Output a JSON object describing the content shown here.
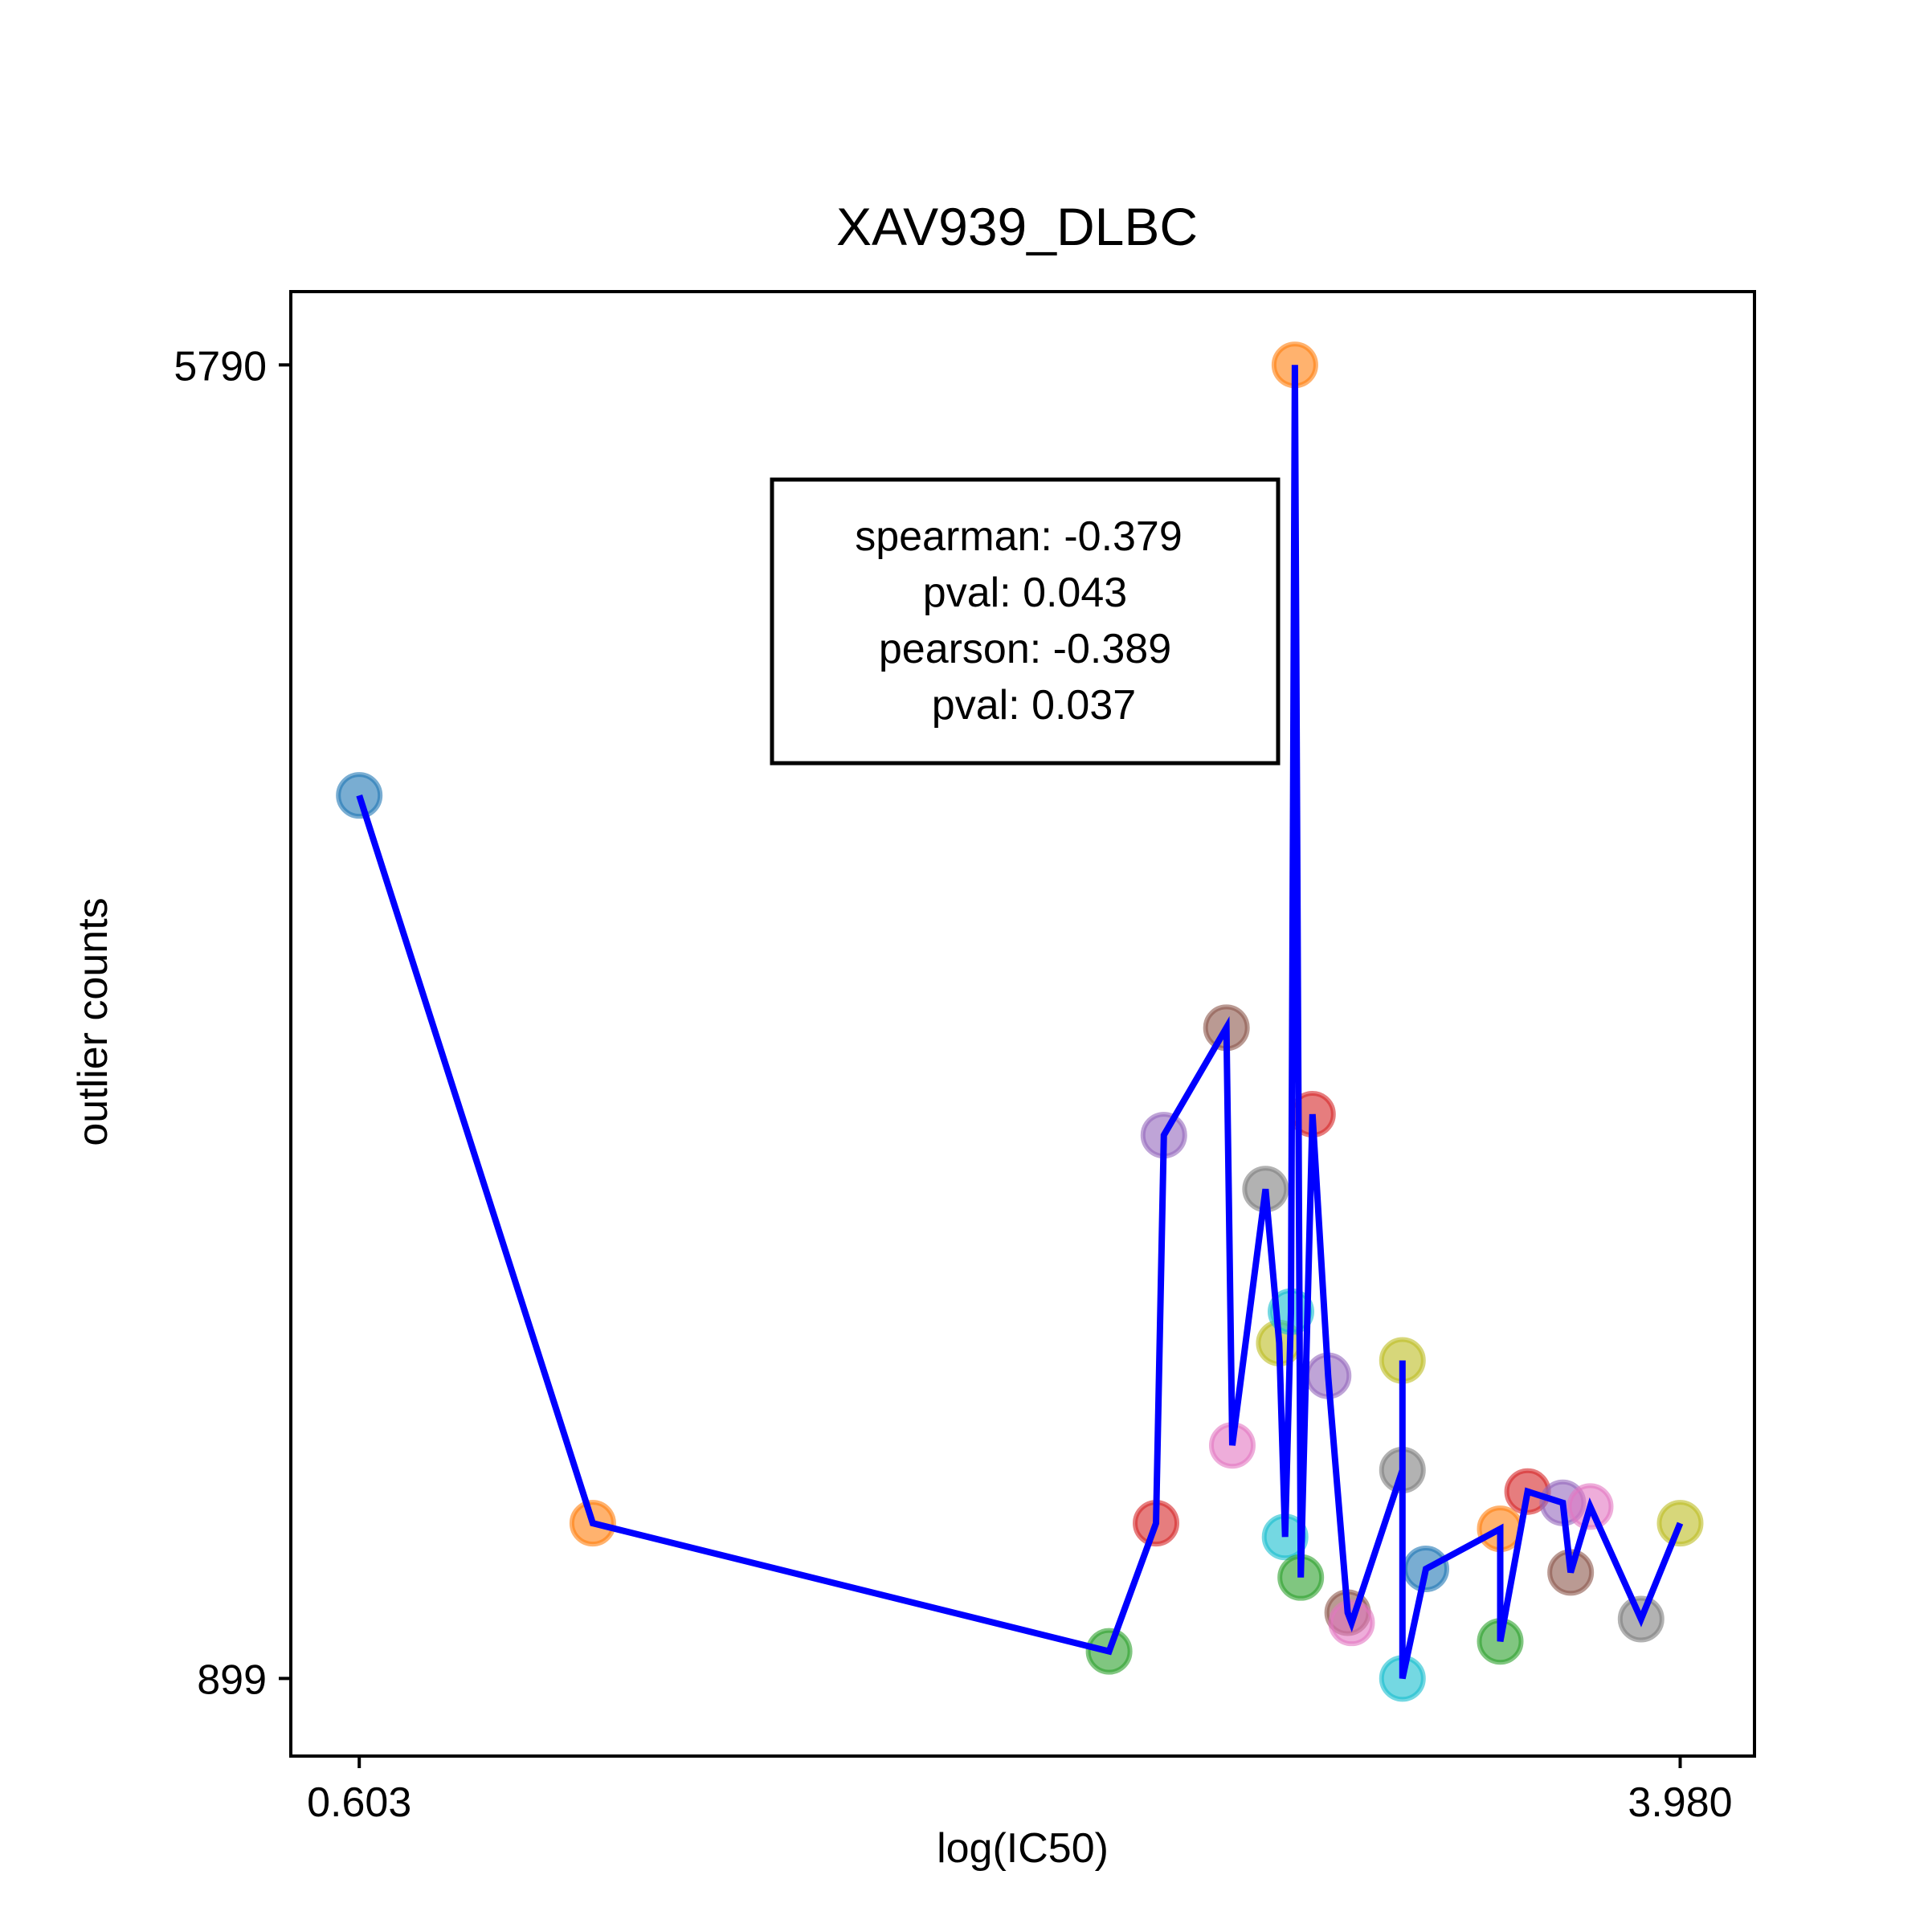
{
  "chart_data": {
    "type": "line",
    "title": "XAV939_DLBC",
    "xlabel": "log(IC50)",
    "ylabel": "outlier counts",
    "x_ticks": [
      {
        "value": 0.603,
        "label": "0.603"
      },
      {
        "value": 3.98,
        "label": "3.980"
      }
    ],
    "y_ticks": [
      {
        "value": 899,
        "label": "899"
      },
      {
        "value": 5790,
        "label": "5790"
      }
    ],
    "xlim": [
      0.428,
      4.17
    ],
    "ylim": [
      610,
      6063
    ],
    "grid": false,
    "line_color": "#0000ff",
    "annotation": {
      "lines": [
        "spearman: -0.379",
        "pval: 0.043",
        "pearson: -0.389",
        "pval: 0.037"
      ],
      "placement": "top-center"
    },
    "series": [
      {
        "points": [
          {
            "x": 0.603,
            "y": 4187,
            "color": "#1f77b4"
          },
          {
            "x": 1.2,
            "y": 1477,
            "color": "#ff7f0e"
          },
          {
            "x": 2.52,
            "y": 1000,
            "color": "#2ca02c"
          },
          {
            "x": 2.64,
            "y": 1477,
            "color": "#d62728"
          },
          {
            "x": 2.66,
            "y": 2922,
            "color": "#9467bd"
          },
          {
            "x": 2.82,
            "y": 3322,
            "color": "#8c564b"
          },
          {
            "x": 2.835,
            "y": 1767,
            "color": "#e377c2"
          },
          {
            "x": 2.92,
            "y": 2721,
            "color": "#7f7f7f"
          },
          {
            "x": 2.955,
            "y": 2148,
            "color": "#bcbd22"
          },
          {
            "x": 2.97,
            "y": 1426,
            "color": "#17becf"
          },
          {
            "x": 2.985,
            "y": 2265,
            "color": "#17becf"
          },
          {
            "x": 2.995,
            "y": 5790,
            "color": "#ff7f0e"
          },
          {
            "x": 3.01,
            "y": 1275,
            "color": "#2ca02c"
          },
          {
            "x": 3.04,
            "y": 3000,
            "color": "#d62728"
          },
          {
            "x": 3.08,
            "y": 2026,
            "color": "#9467bd"
          },
          {
            "x": 3.13,
            "y": 1144,
            "color": "#8c564b"
          },
          {
            "x": 3.14,
            "y": 1106,
            "color": "#e377c2"
          },
          {
            "x": 3.27,
            "y": 1675,
            "color": "#7f7f7f"
          },
          {
            "x": 3.27,
            "y": 2083,
            "color": "#bcbd22"
          },
          {
            "x": 3.27,
            "y": 899,
            "color": "#17becf"
          },
          {
            "x": 3.33,
            "y": 1307,
            "color": "#1f77b4"
          },
          {
            "x": 3.52,
            "y": 1456,
            "color": "#ff7f0e"
          },
          {
            "x": 3.52,
            "y": 1037,
            "color": "#2ca02c"
          },
          {
            "x": 3.59,
            "y": 1595,
            "color": "#d62728"
          },
          {
            "x": 3.68,
            "y": 1553,
            "color": "#9467bd"
          },
          {
            "x": 3.7,
            "y": 1294,
            "color": "#8c564b"
          },
          {
            "x": 3.75,
            "y": 1539,
            "color": "#e377c2"
          },
          {
            "x": 3.88,
            "y": 1120,
            "color": "#7f7f7f"
          },
          {
            "x": 3.98,
            "y": 1477,
            "color": "#bcbd22"
          }
        ]
      }
    ]
  }
}
